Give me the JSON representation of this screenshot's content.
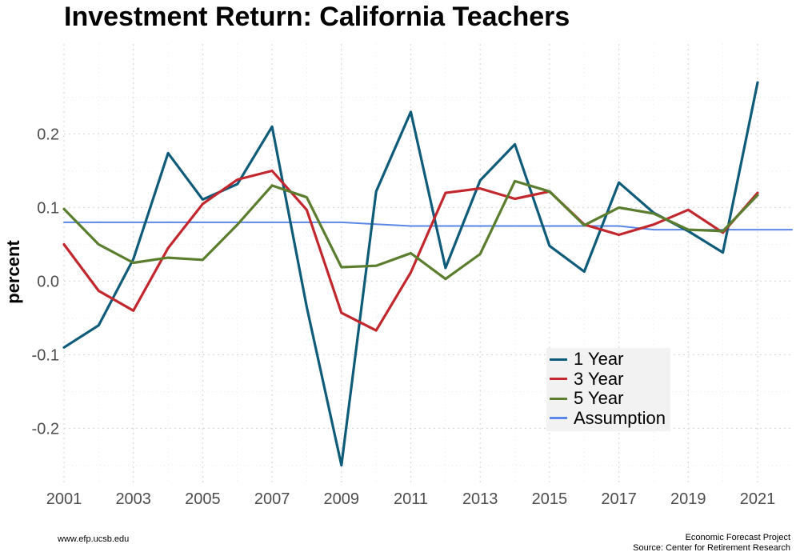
{
  "chart_data": {
    "type": "line",
    "title": "Investment Return: California Teachers",
    "ylabel": "percent",
    "xlabel": "",
    "xlim": [
      2001,
      2022
    ],
    "ylim": [
      -0.25,
      0.3
    ],
    "x_ticks": [
      2001,
      2003,
      2005,
      2007,
      2009,
      2011,
      2013,
      2015,
      2017,
      2019,
      2021
    ],
    "y_ticks": [
      -0.2,
      -0.1,
      0.0,
      0.1,
      0.2
    ],
    "y_tick_labels": [
      "-0.2",
      "-0.1",
      "0.0",
      "0.1",
      "0.2"
    ],
    "grid": true,
    "legend_position": "bottom-right",
    "series": [
      {
        "name": "1 Year",
        "color": "#0e5b7a",
        "x": [
          2001,
          2002,
          2003,
          2004,
          2005,
          2006,
          2007,
          2008,
          2009,
          2010,
          2011,
          2012,
          2013,
          2014,
          2015,
          2016,
          2017,
          2018,
          2019,
          2020,
          2021
        ],
        "values": [
          -0.09,
          -0.06,
          0.03,
          0.174,
          0.111,
          0.132,
          0.21,
          -0.035,
          -0.25,
          0.122,
          0.23,
          0.018,
          0.137,
          0.186,
          0.048,
          0.013,
          0.134,
          0.093,
          0.068,
          0.039,
          0.27
        ]
      },
      {
        "name": "3 Year",
        "color": "#c1272d",
        "x": [
          2001,
          2002,
          2003,
          2004,
          2005,
          2006,
          2007,
          2008,
          2009,
          2010,
          2011,
          2012,
          2013,
          2014,
          2015,
          2016,
          2017,
          2018,
          2019,
          2020,
          2021
        ],
        "values": [
          0.05,
          -0.013,
          -0.04,
          0.045,
          0.105,
          0.138,
          0.15,
          0.097,
          -0.043,
          -0.067,
          0.012,
          0.12,
          0.126,
          0.112,
          0.122,
          0.077,
          0.063,
          0.077,
          0.097,
          0.066,
          0.12
        ]
      },
      {
        "name": "5 Year",
        "color": "#5a7d2e",
        "x": [
          2001,
          2002,
          2003,
          2004,
          2005,
          2006,
          2007,
          2008,
          2009,
          2010,
          2011,
          2012,
          2013,
          2014,
          2015,
          2016,
          2017,
          2018,
          2019,
          2020,
          2021
        ],
        "values": [
          0.098,
          0.05,
          0.025,
          0.032,
          0.029,
          0.077,
          0.13,
          0.114,
          0.019,
          0.021,
          0.038,
          0.003,
          0.037,
          0.136,
          0.122,
          0.076,
          0.1,
          0.092,
          0.07,
          0.068,
          0.117
        ]
      },
      {
        "name": "Assumption",
        "color": "#5a87e6",
        "x": [
          2001,
          2002,
          2003,
          2004,
          2005,
          2006,
          2007,
          2008,
          2009,
          2010,
          2011,
          2012,
          2013,
          2014,
          2015,
          2016,
          2017,
          2018,
          2019,
          2020,
          2021,
          2022
        ],
        "values": [
          0.08,
          0.08,
          0.08,
          0.08,
          0.08,
          0.08,
          0.08,
          0.08,
          0.08,
          0.0775,
          0.075,
          0.075,
          0.075,
          0.075,
          0.075,
          0.075,
          0.075,
          0.07,
          0.07,
          0.07,
          0.07,
          0.07
        ]
      }
    ]
  },
  "footer": {
    "left": "www.efp.ucsb.edu",
    "right_line1": "Economic Forecast Project",
    "right_line2": "Source: Center for Retirement Research"
  }
}
